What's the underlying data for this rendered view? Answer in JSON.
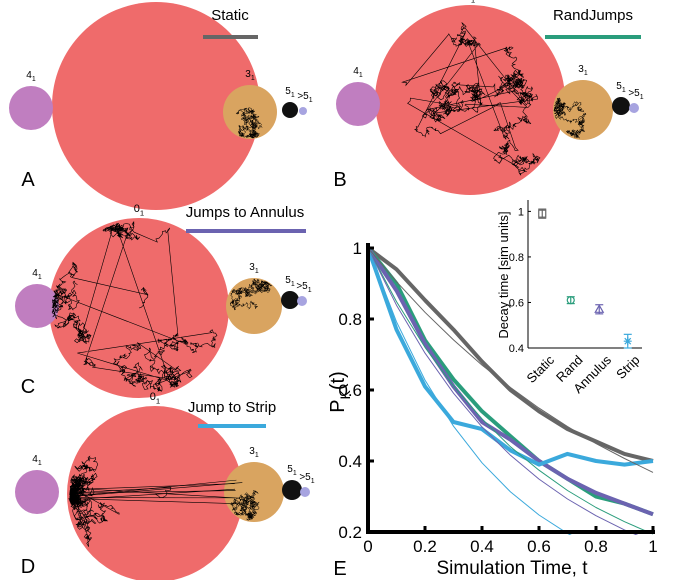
{
  "panels": [
    {
      "letter": "A",
      "title": "Static",
      "title_color": "#666666",
      "jumps": "none"
    },
    {
      "letter": "B",
      "title": "RandJumps",
      "title_color": "#2a9d7c",
      "jumps": "random"
    },
    {
      "letter": "C",
      "title": "Jumps to Annulus",
      "title_color": "#6b63b0",
      "jumps": "annulus"
    },
    {
      "letter": "D",
      "title": "Jump to Strip",
      "title_color": "#3ba9dc",
      "jumps": "strip"
    }
  ],
  "knots": [
    {
      "main": "0",
      "sub": "1",
      "color": "#ef6b6b"
    },
    {
      "main": "4",
      "sub": "1",
      "color": "#c07ec0"
    },
    {
      "main": "3",
      "sub": "1",
      "color": "#d9a460"
    },
    {
      "main": "5",
      "sub": "1",
      "color": "#111111"
    },
    {
      "main": ">5",
      "sub": "1",
      "color": "#a7a4e0"
    }
  ],
  "chart_data": [
    {
      "type": "line",
      "panel_label": "E",
      "xlabel": "Simulation Time, t",
      "ylabel": {
        "main": "P",
        "sub": "K",
        "rest": "(t)"
      },
      "x": [
        0,
        0.1,
        0.2,
        0.3,
        0.4,
        0.5,
        0.6,
        0.7,
        0.8,
        0.9,
        1
      ],
      "xlim": [
        0,
        1
      ],
      "xticks": [
        0,
        0.2,
        0.4,
        0.6,
        0.8,
        1
      ],
      "ylim": [
        0.2,
        1
      ],
      "yticks": [
        0.2,
        0.4,
        0.6,
        0.8,
        1
      ],
      "series": [
        {
          "color": "#666666",
          "width": 4,
          "values": [
            1,
            0.94,
            0.853,
            0.77,
            0.68,
            0.6,
            0.54,
            0.49,
            0.455,
            0.42,
            0.4
          ]
        },
        {
          "color": "#2a9d7c",
          "width": 4,
          "values": [
            1,
            0.9,
            0.74,
            0.63,
            0.54,
            0.47,
            0.4,
            0.35,
            0.3,
            0.28,
            0.25
          ]
        },
        {
          "color": "#6b63b0",
          "width": 4,
          "values": [
            1,
            0.88,
            0.73,
            0.61,
            0.51,
            0.46,
            0.4,
            0.35,
            0.31,
            0.28,
            0.25
          ]
        },
        {
          "color": "#3ba9dc",
          "width": 4,
          "values": [
            1,
            0.77,
            0.61,
            0.51,
            0.49,
            0.43,
            0.39,
            0.42,
            0.4,
            0.39,
            0.4
          ]
        },
        {
          "color": "#666666",
          "width": 1,
          "values": [
            1,
            0.905,
            0.819,
            0.741,
            0.67,
            0.607,
            0.549,
            0.497,
            0.449,
            0.407,
            0.368
          ]
        },
        {
          "color": "#2a9d7c",
          "width": 1,
          "values": [
            1,
            0.849,
            0.72,
            0.611,
            0.519,
            0.44,
            0.374,
            0.317,
            0.269,
            0.229,
            0.194
          ]
        },
        {
          "color": "#6b63b0",
          "width": 1,
          "values": [
            1,
            0.839,
            0.704,
            0.591,
            0.496,
            0.416,
            0.349,
            0.293,
            0.246,
            0.206,
            0.173
          ]
        },
        {
          "color": "#3ba9dc",
          "width": 1,
          "values": [
            1,
            0.792,
            0.628,
            0.498,
            0.395,
            0.313,
            0.248,
            0.196,
            0.156,
            0.123,
            0.098
          ]
        }
      ]
    },
    {
      "type": "errorbar",
      "ylabel": "Decay time [sim units]",
      "categories": [
        "Static",
        "Rand",
        "Annulus",
        "Strip"
      ],
      "values": [
        0.99,
        0.61,
        0.57,
        0.43
      ],
      "errors": [
        0.02,
        0.015,
        0.02,
        0.03
      ],
      "colors": [
        "#666666",
        "#2a9d7c",
        "#6b63b0",
        "#3ba9dc"
      ],
      "ylim": [
        0.4,
        1.05
      ],
      "yticks": [
        0.4,
        0.6,
        0.8,
        1
      ]
    }
  ]
}
